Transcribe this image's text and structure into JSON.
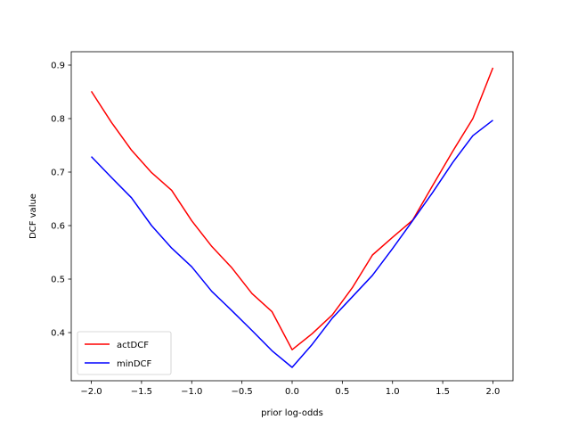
{
  "chart_data": {
    "type": "line",
    "title": "",
    "xlabel": "prior log-odds",
    "ylabel": "DCF value",
    "xlim": [
      -2.2,
      2.2
    ],
    "ylim": [
      0.31,
      0.925
    ],
    "xticks": [
      -2.0,
      -1.5,
      -1.0,
      -0.5,
      0.0,
      0.5,
      1.0,
      1.5,
      2.0
    ],
    "xtick_labels": [
      "−2.0",
      "−1.5",
      "−1.0",
      "−0.5",
      "0.0",
      "0.5",
      "1.0",
      "1.5",
      "2.0"
    ],
    "yticks": [
      0.4,
      0.5,
      0.6,
      0.7,
      0.8,
      0.9
    ],
    "ytick_labels": [
      "0.4",
      "0.5",
      "0.6",
      "0.7",
      "0.8",
      "0.9"
    ],
    "grid": false,
    "legend_position": "lower-left",
    "x": [
      -2.0,
      -1.8,
      -1.6,
      -1.4,
      -1.2,
      -1.0,
      -0.8,
      -0.6,
      -0.4,
      -0.2,
      0.0,
      0.2,
      0.4,
      0.6,
      0.8,
      1.0,
      1.2,
      1.4,
      1.6,
      1.8,
      2.0
    ],
    "series": [
      {
        "name": "actDCF",
        "color": "#ff0000",
        "values": [
          0.851,
          0.793,
          0.741,
          0.699,
          0.666,
          0.609,
          0.561,
          0.521,
          0.473,
          0.439,
          0.368,
          0.398,
          0.433,
          0.484,
          0.545,
          0.578,
          0.61,
          0.675,
          0.739,
          0.8,
          0.895
        ]
      },
      {
        "name": "minDCF",
        "color": "#0000ff",
        "values": [
          0.729,
          0.69,
          0.652,
          0.6,
          0.558,
          0.523,
          0.477,
          0.441,
          0.404,
          0.366,
          0.335,
          0.378,
          0.427,
          0.467,
          0.507,
          0.557,
          0.609,
          0.662,
          0.718,
          0.768,
          0.797
        ]
      }
    ]
  }
}
